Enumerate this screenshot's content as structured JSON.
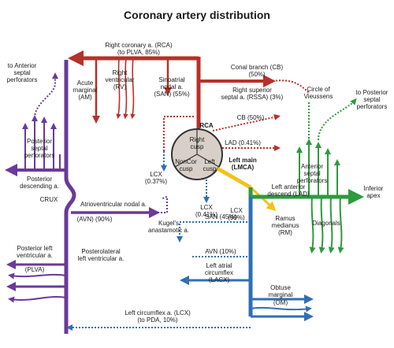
{
  "title": "Coronary artery distribution",
  "colors": {
    "rca": "#b8302a",
    "lad": "#2e9a3e",
    "lcx": "#2f6fb5",
    "posterior": "#6a3a9a",
    "lmca": "#f2c21a",
    "aorta": "#d8d0c8",
    "outline": "#333333"
  },
  "labels": {
    "rca_main": "Right coronary a. (RCA)",
    "rca_main_sub": "(to PLVA, 85%)",
    "acute_marginal": "Acute",
    "acute_marginal_2": "marginal",
    "acute_marginal_3": "(AM)",
    "right_ventricular": "Right",
    "right_ventricular_2": "ventricular",
    "right_ventricular_3": "(RV)",
    "sinoatrial": "Sinoatrial",
    "sinoatrial_2": "nodal a.",
    "sinoatrial_3": "(SAN) (55%)",
    "conal": "Conal branch (CB)",
    "conal_2": "(50%)",
    "rssa": "Right superior",
    "rssa_2": "septal a. (RSSA) (3%)",
    "vieussens": "Circle of",
    "vieussens_2": "Vieussens",
    "to_anterior": "to Anterior",
    "to_anterior_2": "septal",
    "to_anterior_3": "perforators",
    "to_posterior": "to Posterior",
    "to_posterior_2": "septal",
    "to_posterior_3": "perforators",
    "cb_small": "CB (50%)",
    "rca_tag": "RCA",
    "lad_small": "LAD (0.41%)",
    "posterior_septal": "Posterior",
    "posterior_septal_2": "septal",
    "posterior_septal_3": "perforators",
    "lcx_left": "LCX",
    "lcx_left_2": "(0.37%)",
    "right_cusp": "Right",
    "right_cusp_2": "cusp",
    "noncor_cusp": "NonCor",
    "noncor_cusp_2": "cusp",
    "left_cusp": "Left",
    "left_cusp_2": "cusp",
    "left_main": "Left main",
    "left_main_2": "(LMCA)",
    "anterior_septal": "Anterior",
    "anterior_septal_2": "septal",
    "anterior_septal_3": "perforators",
    "posterior_descending": "Posterior",
    "posterior_descending_2": "descending a.",
    "lad_main": "Left anterior",
    "lad_main_2": "descend (LAD)",
    "inferior_apex": "Inferior",
    "inferior_apex_2": "apex",
    "lcx_bottom": "LCX",
    "lcx_bottom_2": "(0.41%)",
    "crux": "CRUX",
    "avn_main": "Atrioventricular nodal a.",
    "avn_main_2": "(AVN) (90%)",
    "kugel": "Kugel's",
    "kugel_2": "anastamotic a.",
    "lcx_main": "LCX",
    "lcx_main_2": "(99%)",
    "ramus": "Ramus",
    "ramus_2": "medianus",
    "ramus_3": "(RM)",
    "diagonals": "Diagonals",
    "san_45": "SAN (45%)",
    "avn_10": "AVN (10%)",
    "plva": "Posterior left",
    "plva_2": "ventricular a.",
    "plva_3": "(PLVA)",
    "posterolateral": "Posterolateral",
    "posterolateral_2": "left ventricular a.",
    "lacx": "Left atrial",
    "lacx_2": "circumflex",
    "lacx_3": "(LACX)",
    "obtuse": "Obtuse",
    "obtuse_2": "marginal",
    "obtuse_3": "(OM)",
    "lcx_circ": "Left circumflex a. (LCX)",
    "lcx_circ_2": "(to PDA, 10%)"
  }
}
